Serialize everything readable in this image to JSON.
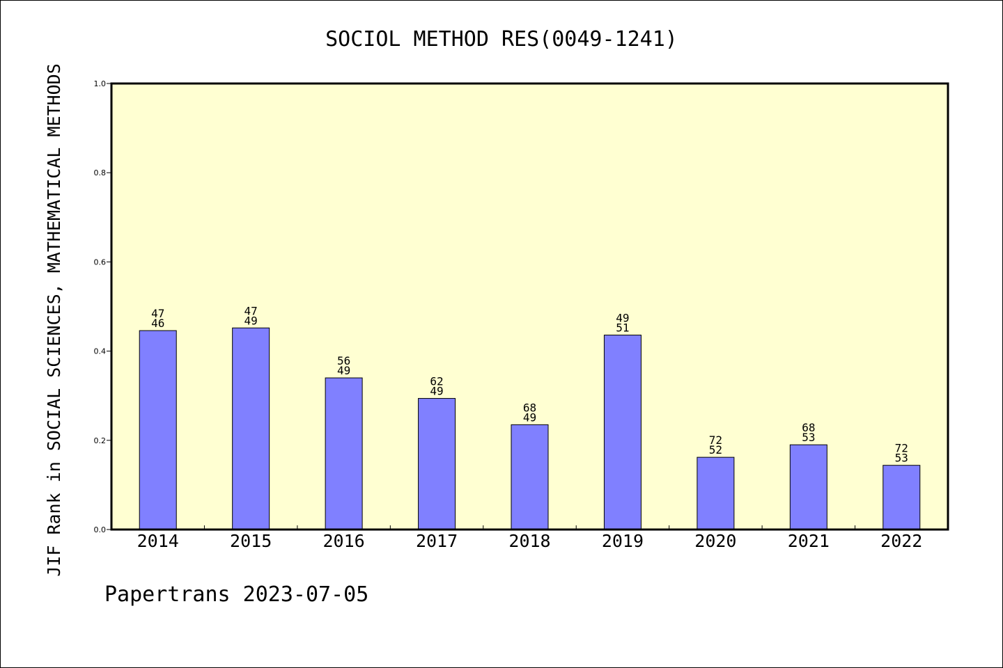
{
  "chart_data": {
    "type": "bar",
    "title": "SOCIOL METHOD RES(0049-1241)",
    "ylabel": "JIF Rank in SOCIAL SCIENCES, MATHEMATICAL METHODS",
    "xlabel": "",
    "ylim": [
      0,
      1.0
    ],
    "yticks": [
      "0.0",
      "0.2",
      "0.4",
      "0.6",
      "0.8",
      "1.0"
    ],
    "ytick_values": [
      0.0,
      0.2,
      0.4,
      0.6,
      0.8,
      1.0
    ],
    "categories": [
      "2014",
      "2015",
      "2016",
      "2017",
      "2018",
      "2019",
      "2020",
      "2021",
      "2022"
    ],
    "values": [
      0.446,
      0.452,
      0.34,
      0.294,
      0.235,
      0.436,
      0.162,
      0.19,
      0.144
    ],
    "label_top": [
      "47",
      "47",
      "56",
      "62",
      "68",
      "49",
      "72",
      "68",
      "72"
    ],
    "label_bottom": [
      "46",
      "49",
      "49",
      "49",
      "49",
      "51",
      "52",
      "53",
      "53"
    ],
    "grid": false,
    "legend": "none",
    "colors": {
      "plot_background": "#ffffd2",
      "bar_fill": "#8080ff",
      "bar_stroke": "#000000",
      "text": "#000000"
    }
  },
  "footer": {
    "watermark": "Papertrans 2023-07-05"
  }
}
